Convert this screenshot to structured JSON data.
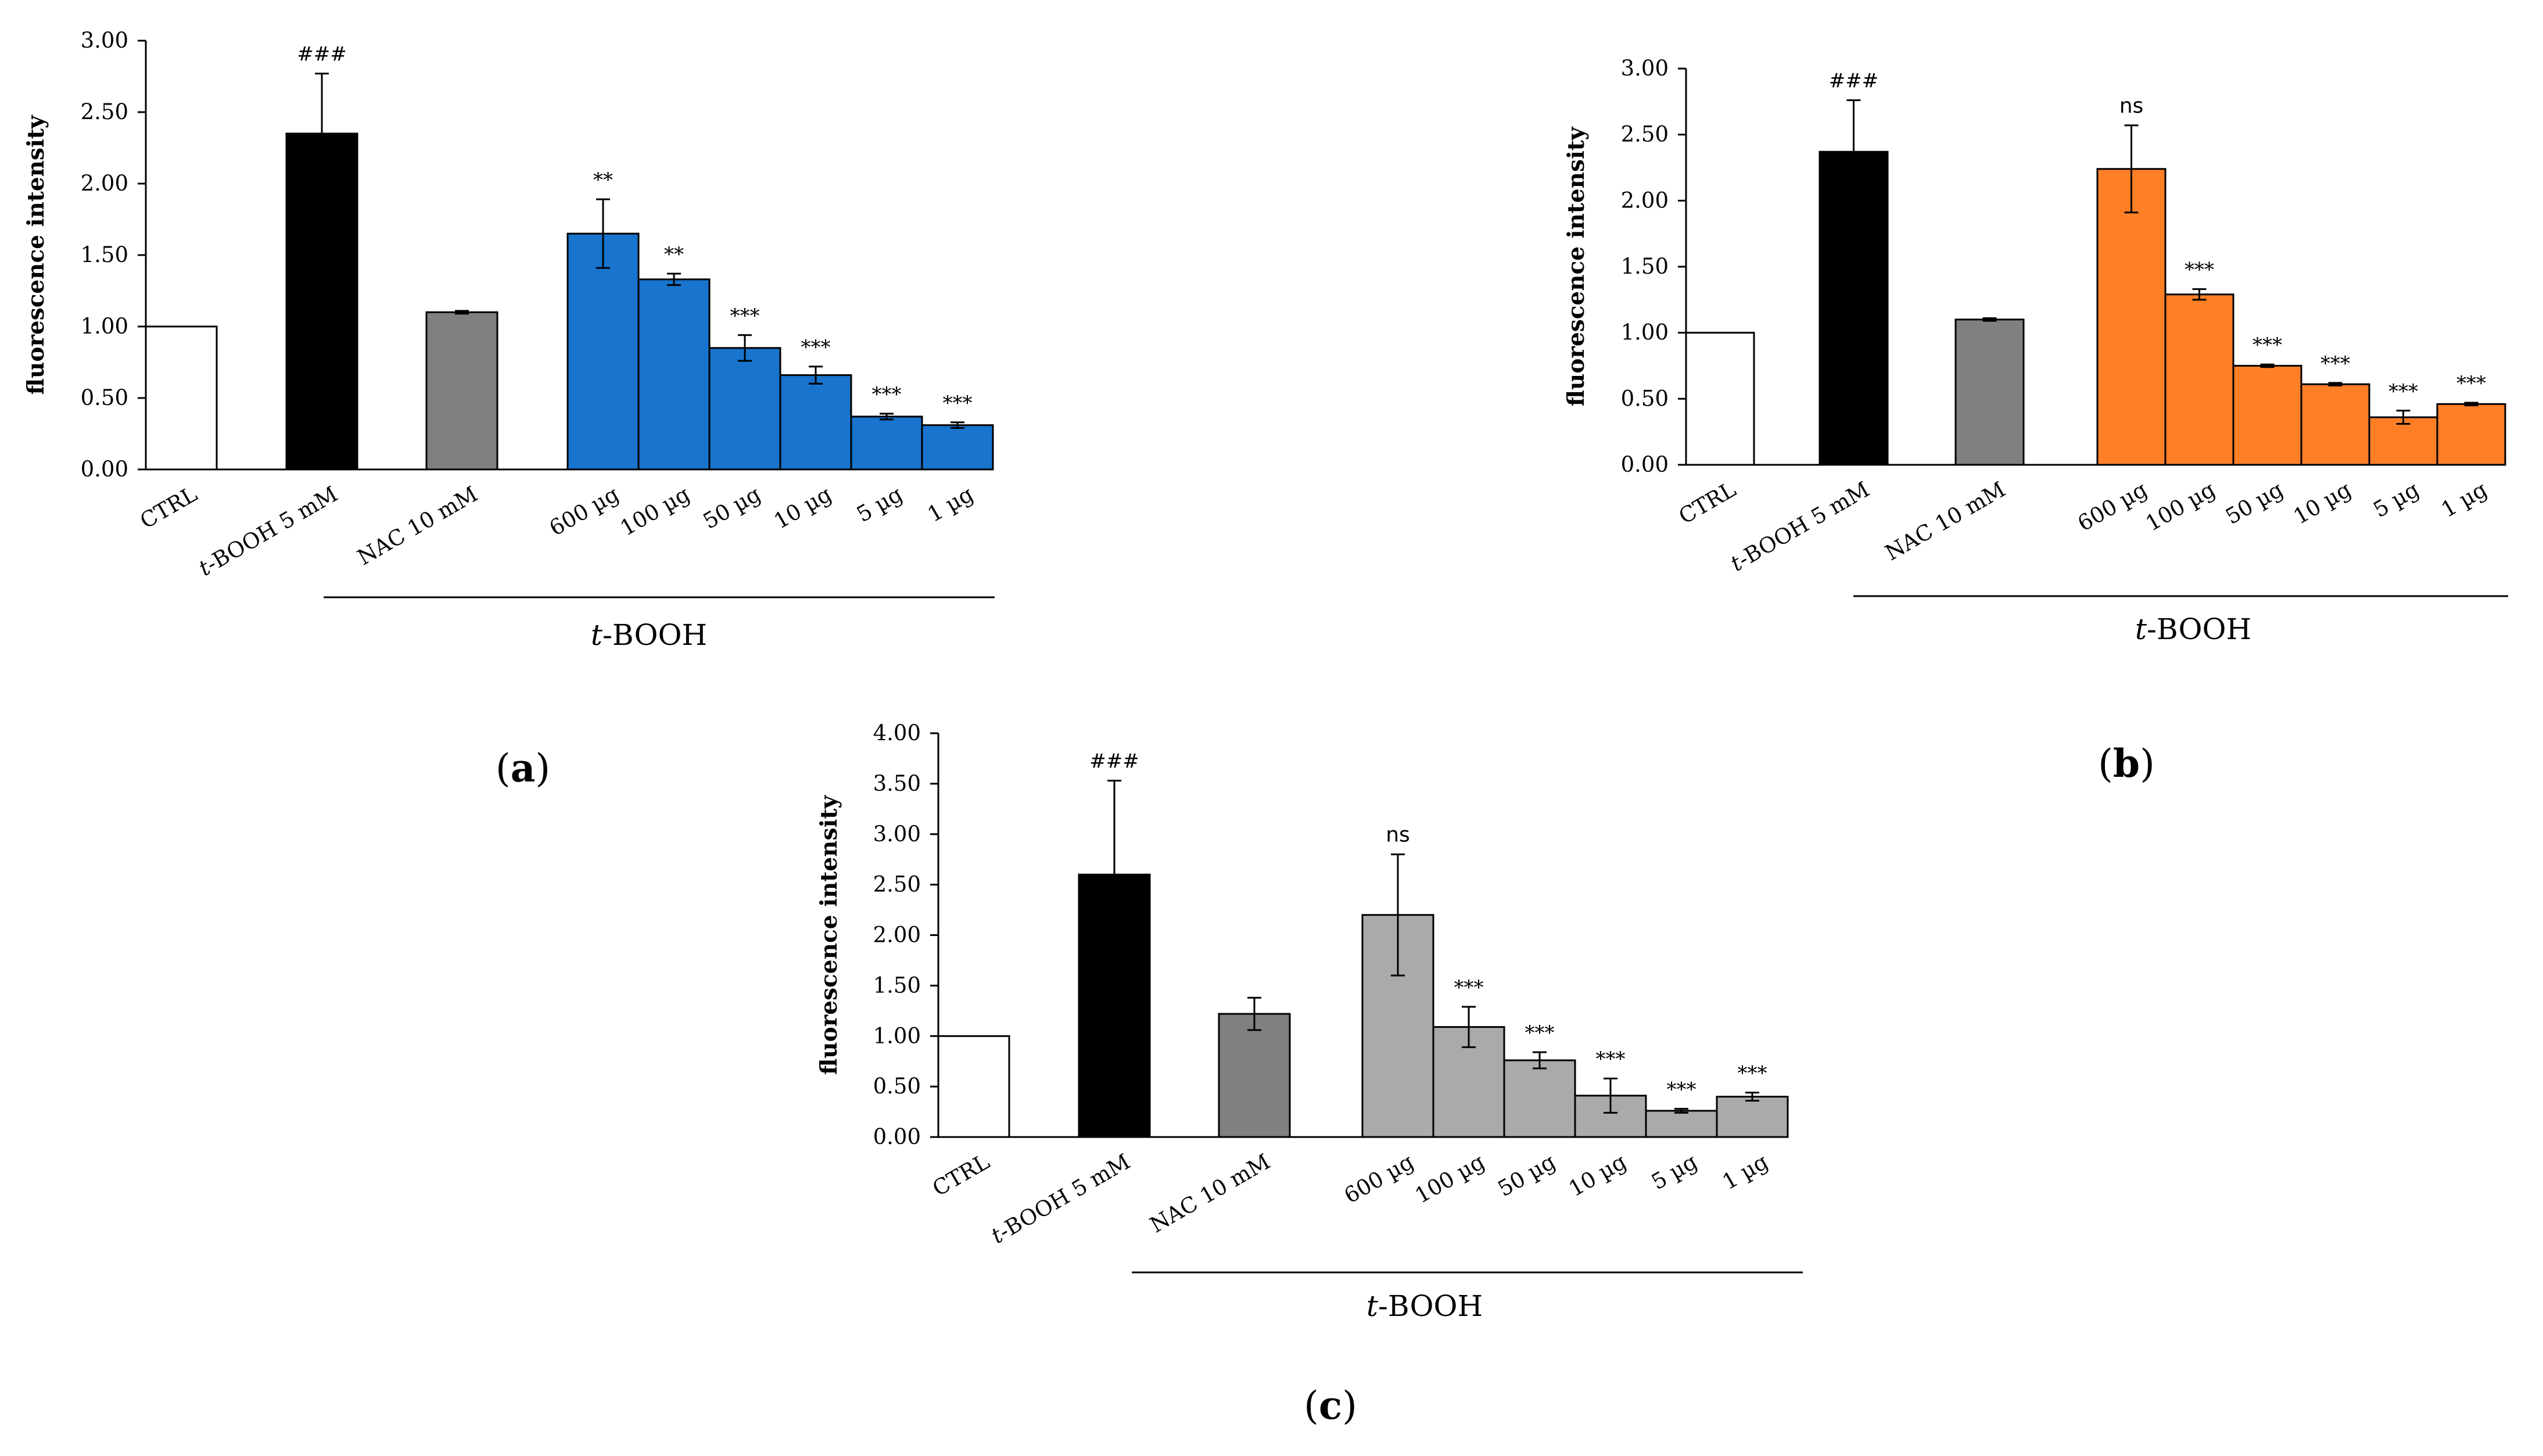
{
  "chart_data": [
    {
      "type": "bar",
      "panel": "(a)",
      "ylabel": "fluorescence intensity",
      "ylim": [
        0,
        3
      ],
      "yticks": [
        "0.00",
        "0.50",
        "1.00",
        "1.50",
        "2.00",
        "2.50",
        "3.00"
      ],
      "categories": [
        "CTRL",
        "t-BOOH 5 mM",
        "NAC 10 mM",
        "600 µg",
        "100 µg",
        "50 µg",
        "10 µg",
        "5 µg",
        "1 µg"
      ],
      "values": [
        1.0,
        2.35,
        1.1,
        1.65,
        1.33,
        0.85,
        0.66,
        0.37,
        0.31
      ],
      "errors": [
        0,
        0.42,
        0.01,
        0.24,
        0.04,
        0.09,
        0.06,
        0.02,
        0.02
      ],
      "annotations": [
        "",
        "###",
        "",
        "**",
        "**",
        "***",
        "***",
        "***",
        "***"
      ],
      "group_label": "t-BOOH",
      "group_label_italic": "t",
      "group_label_rest": "-BOOH",
      "colors": [
        "#ffffff",
        "#000000",
        "#808080",
        "#1874cd",
        "#1874cd",
        "#1874cd",
        "#1874cd",
        "#1874cd",
        "#1874cd"
      ]
    },
    {
      "type": "bar",
      "panel": "(b)",
      "ylabel": "fluorescence intensity",
      "ylim": [
        0,
        3
      ],
      "yticks": [
        "0.00",
        "0.50",
        "1.00",
        "1.50",
        "2.00",
        "2.50",
        "3.00"
      ],
      "categories": [
        "CTRL",
        "t-BOOH 5 mM",
        "NAC 10 mM",
        "600 µg",
        "100 µg",
        "50 µg",
        "10 µg",
        "5 µg",
        "1 µg"
      ],
      "values": [
        1.0,
        2.37,
        1.1,
        2.24,
        1.29,
        0.75,
        0.61,
        0.36,
        0.46
      ],
      "errors": [
        0,
        0.39,
        0.01,
        0.33,
        0.04,
        0.01,
        0.01,
        0.05,
        0.01
      ],
      "annotations": [
        "",
        "###",
        "",
        "ns",
        "***",
        "***",
        "***",
        "***",
        "***"
      ],
      "group_label": "t-BOOH",
      "group_label_italic": "t",
      "group_label_rest": "-BOOH",
      "colors": [
        "#ffffff",
        "#000000",
        "#808080",
        "#ff7f27",
        "#ff7f27",
        "#ff7f27",
        "#ff7f27",
        "#ff7f27",
        "#ff7f27"
      ]
    },
    {
      "type": "bar",
      "panel": "(c)",
      "ylabel": "fluorescence intensity",
      "ylim": [
        0,
        4
      ],
      "yticks": [
        "0.00",
        "0.50",
        "1.00",
        "1.50",
        "2.00",
        "2.50",
        "3.00",
        "3.50",
        "4.00"
      ],
      "categories": [
        "CTRL",
        "t-BOOH 5 mM",
        "NAC 10 mM",
        "600 µg",
        "100 µg",
        "50 µg",
        "10 µg",
        "5 µg",
        "1 µg"
      ],
      "values": [
        1.0,
        2.6,
        1.22,
        2.2,
        1.09,
        0.76,
        0.41,
        0.26,
        0.4
      ],
      "errors": [
        0,
        0.93,
        0.16,
        0.6,
        0.2,
        0.08,
        0.17,
        0.02,
        0.04
      ],
      "annotations": [
        "",
        "###",
        "",
        "ns",
        "***",
        "***",
        "***",
        "***",
        "***"
      ],
      "group_label": "t-BOOH",
      "group_label_italic": "t",
      "group_label_rest": "-BOOH",
      "colors": [
        "#ffffff",
        "#000000",
        "#808080",
        "#aaaaaa",
        "#aaaaaa",
        "#aaaaaa",
        "#aaaaaa",
        "#aaaaaa",
        "#aaaaaa"
      ]
    }
  ]
}
